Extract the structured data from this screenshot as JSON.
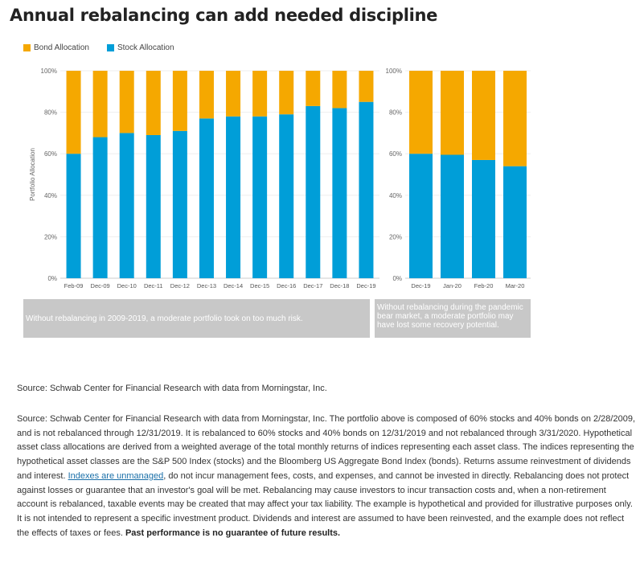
{
  "title": "Annual rebalancing can add needed discipline",
  "colors": {
    "bond": "#F5A800",
    "stock": "#009ED8",
    "callout_bg": "#C8C8C8",
    "link": "#1A6FA8"
  },
  "chart_data": [
    {
      "type": "bar",
      "stacked": true,
      "ylabel": "Portfolio Allocation",
      "ylim": [
        0,
        100
      ],
      "yticks": [
        "0%",
        "20%",
        "40%",
        "60%",
        "80%",
        "100%"
      ],
      "categories": [
        "Feb-09",
        "Dec-09",
        "Dec-10",
        "Dec-11",
        "Dec-12",
        "Dec-13",
        "Dec-14",
        "Dec-15",
        "Dec-16",
        "Dec-17",
        "Dec-18",
        "Dec-19"
      ],
      "series": [
        {
          "name": "Stock Allocation",
          "values": [
            60,
            68,
            70,
            69,
            71,
            77,
            78,
            78,
            79,
            83,
            82,
            85
          ]
        },
        {
          "name": "Bond Allocation",
          "values": [
            40,
            32,
            30,
            31,
            29,
            23,
            22,
            22,
            21,
            17,
            18,
            15
          ]
        }
      ],
      "legend": [
        "Bond Allocation",
        "Stock Allocation"
      ],
      "legend_position": "top-left",
      "annotation": "Without rebalancing in 2009-2019, a moderate portfolio took on too much risk."
    },
    {
      "type": "bar",
      "stacked": true,
      "ylim": [
        0,
        100
      ],
      "yticks": [
        "0%",
        "20%",
        "40%",
        "60%",
        "80%",
        "100%"
      ],
      "categories": [
        "Dec-19",
        "Jan-20",
        "Feb-20",
        "Mar-20"
      ],
      "series": [
        {
          "name": "Stock Allocation",
          "values": [
            60,
            59.5,
            57,
            54
          ]
        },
        {
          "name": "Bond Allocation",
          "values": [
            40,
            40.5,
            43,
            46
          ]
        }
      ],
      "annotation": "Without rebalancing during the pandemic bear market, a moderate portfolio may have lost some recovery potential."
    }
  ],
  "source_short": "Source: Schwab Center for Financial Research with data from Morningstar, Inc.",
  "disclosure": {
    "part1": "Source: Schwab Center for Financial Research with data from Morningstar, Inc. The portfolio above is composed of 60% stocks and 40% bonds on 2/28/2009, and is not rebalanced through 12/31/2019. It is rebalanced to 60% stocks and 40% bonds on 12/31/2019 and not rebalanced through 3/31/2020. Hypothetical asset class allocations are derived from a weighted average of the total monthly returns of indices representing each asset class. The indices representing the hypothetical asset classes are the S&P 500 Index (stocks) and the Bloomberg US Aggregate Bond Index (bonds). Returns assume reinvestment of dividends and interest. ",
    "link": "Indexes are unmanaged",
    "part2": ", do not incur management fees, costs, and expenses, and cannot be invested in directly. Rebalancing does not protect against losses or guarantee that an investor's goal will be met. Rebalancing may cause investors to incur transaction costs and, when a non-retirement account is rebalanced, taxable events may be created that may affect your tax liability. The example is hypothetical and provided for illustrative purposes only. It is not intended to represent a specific investment product. Dividends and interest are assumed to have been reinvested, and the example does not reflect the effects of taxes or fees. ",
    "bold": "Past performance is no guarantee of future results."
  }
}
